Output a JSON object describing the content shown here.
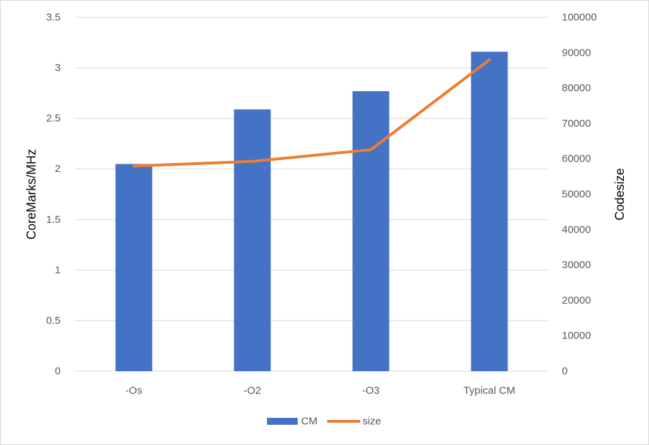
{
  "chart_data": {
    "type": "bar",
    "categories": [
      "-Os",
      "-O2",
      "-O3",
      "Typical CM"
    ],
    "series": [
      {
        "name": "CM",
        "type": "bar",
        "axis": "left",
        "color": "#4472C4",
        "values": [
          2.05,
          2.59,
          2.77,
          3.16
        ]
      },
      {
        "name": "size",
        "type": "line",
        "axis": "right",
        "color": "#ED7D31",
        "values": [
          58000,
          59300,
          62600,
          88000
        ]
      }
    ],
    "ylabel": "CoreMarks/MHz",
    "y2label": "Codesize",
    "ylim": [
      0,
      3.5
    ],
    "y2lim": [
      0,
      100000
    ],
    "yticks": [
      "0",
      "0.5",
      "1",
      "1.5",
      "2",
      "2.5",
      "3",
      "3.5"
    ],
    "y2ticks": [
      "0",
      "10000",
      "20000",
      "30000",
      "40000",
      "50000",
      "60000",
      "70000",
      "80000",
      "90000",
      "100000"
    ],
    "grid": true,
    "legend": "bottom"
  },
  "colors": {
    "grid": "#D9D9D9",
    "border": "#D9D9D9",
    "tick_text": "#595959",
    "axis_title": "#000000"
  }
}
